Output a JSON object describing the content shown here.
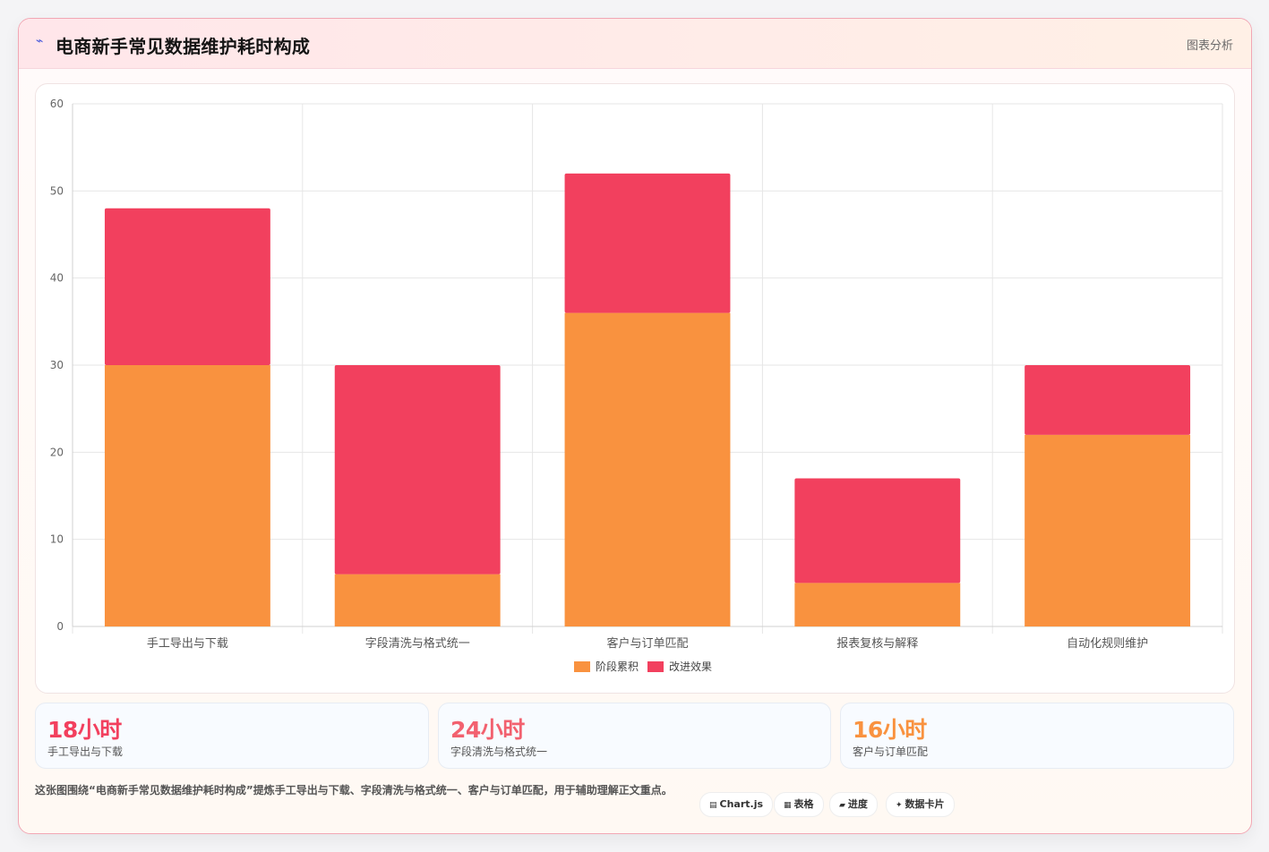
{
  "header": {
    "icon": "lightning-icon",
    "title": "电商新手常见数据维护耗时构成",
    "tag": "图表分析"
  },
  "chart_data": {
    "type": "bar",
    "stacked": true,
    "categories": [
      "手工导出与下载",
      "字段清洗与格式统一",
      "客户与订单匹配",
      "报表复核与解释",
      "自动化规则维护"
    ],
    "series": [
      {
        "name": "阶段累积",
        "color": "#f9923f",
        "values": [
          30,
          6,
          36,
          5,
          22
        ]
      },
      {
        "name": "改进效果",
        "color": "#f2405e",
        "values": [
          18,
          24,
          16,
          12,
          8
        ]
      }
    ],
    "ylim": [
      0,
      60
    ],
    "yticks": [
      0,
      10,
      20,
      30,
      40,
      50,
      60
    ],
    "grid": true,
    "legend_position": "bottom"
  },
  "stats": [
    {
      "value": "18小时",
      "label": "手工导出与下载",
      "color": "#f2405e"
    },
    {
      "value": "24小时",
      "label": "字段清洗与格式统一",
      "color": "#f2616f"
    },
    {
      "value": "16小时",
      "label": "客户与订单匹配",
      "color": "#f9923f"
    }
  ],
  "footer": {
    "text": "这张图围绕“电商新手常见数据维护耗时构成”提炼手工导出与下载、字段清洗与格式统一、客户与订单匹配，用于辅助理解正文重点。",
    "chips": [
      {
        "icon": "▤",
        "label": "Chart.js"
      },
      {
        "icon": "▦",
        "label": "表格"
      },
      {
        "icon": "▰",
        "label": "进度"
      },
      {
        "icon": "✦",
        "label": "数据卡片"
      }
    ]
  }
}
